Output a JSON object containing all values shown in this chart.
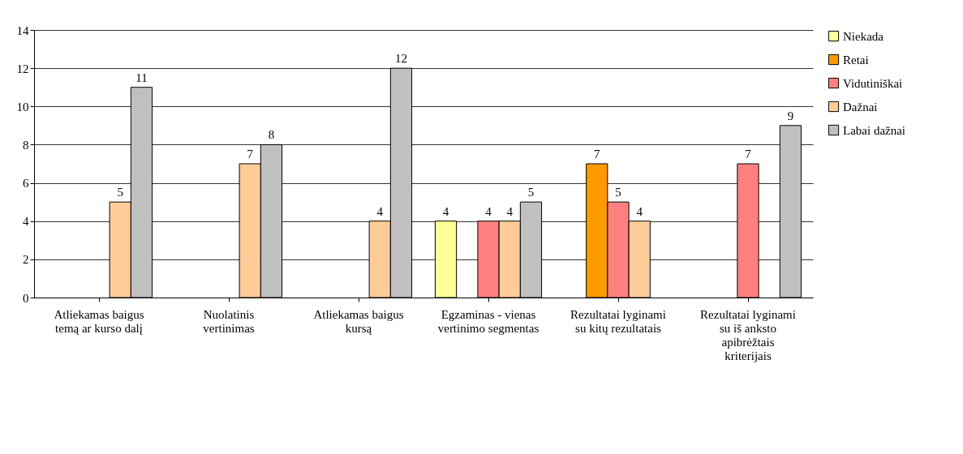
{
  "chart_data": {
    "type": "bar",
    "categories": [
      "Atliekamas baigus temą ar kurso dalį",
      "Nuolatinis vertinimas",
      "Atliekamas baigus kursą",
      "Egzaminas - vienas vertinimo segmentas",
      "Rezultatai lyginami su kitų rezultatais",
      "Rezultatai lyginami su iš anksto apibrėžtais kriterijais"
    ],
    "series": [
      {
        "name": "Niekada",
        "color": "#ffff99",
        "values": [
          null,
          null,
          null,
          4,
          null,
          null
        ]
      },
      {
        "name": "Retai",
        "color": "#ff9900",
        "values": [
          null,
          null,
          null,
          null,
          7,
          null
        ]
      },
      {
        "name": "Vidutiniškai",
        "color": "#ff8080",
        "values": [
          null,
          null,
          null,
          4,
          5,
          7
        ]
      },
      {
        "name": "Dažnai",
        "color": "#ffcc99",
        "values": [
          5,
          7,
          4,
          4,
          4,
          null
        ]
      },
      {
        "name": "Labai dažnai",
        "color": "#c0c0c0",
        "values": [
          11,
          8,
          12,
          5,
          null,
          9
        ]
      }
    ],
    "ylim": [
      0,
      14
    ],
    "yticks": [
      0,
      2,
      4,
      6,
      8,
      10,
      12,
      14
    ],
    "grid": "y",
    "legend": "right",
    "data_labels": true
  }
}
